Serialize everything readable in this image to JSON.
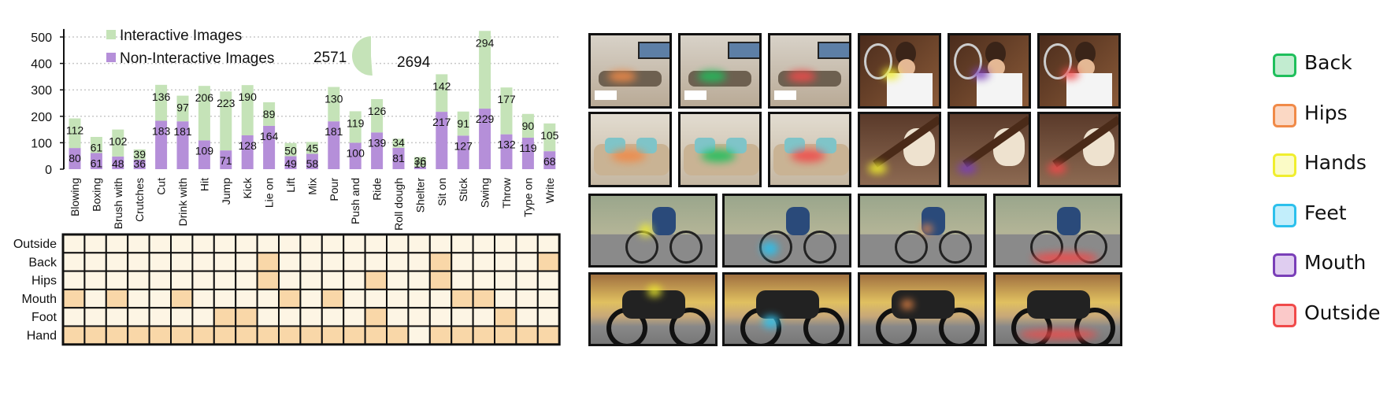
{
  "chart_data": [
    {
      "type": "bar",
      "stacked": true,
      "categories": [
        "Blowing",
        "Boxing",
        "Brush with",
        "Crutches",
        "Cut",
        "Drink with",
        "Hit",
        "Jump",
        "Kick",
        "Lie on",
        "Lift",
        "Mix",
        "Pour",
        "Push and",
        "Ride",
        "Roll dough",
        "Shelter",
        "Sit on",
        "Stick",
        "Swing",
        "Throw",
        "Type on",
        "Write"
      ],
      "series": [
        {
          "name": "Interactive Images",
          "color": "#c5e3b8",
          "values": [
            112,
            61,
            102,
            39,
            136,
            97,
            206,
            223,
            190,
            89,
            50,
            45,
            130,
            119,
            126,
            34,
            36,
            142,
            91,
            294,
            177,
            90,
            105
          ]
        },
        {
          "name": "Non-Interactive Images",
          "color": "#b58fd9",
          "values": [
            80,
            61,
            48,
            36,
            183,
            181,
            109,
            71,
            128,
            164,
            49,
            58,
            181,
            100,
            139,
            81,
            10,
            217,
            127,
            229,
            132,
            119,
            68
          ]
        }
      ],
      "yticks": [
        0,
        100,
        200,
        300,
        400,
        500
      ],
      "ylim": [
        0,
        530
      ],
      "grid": "horizontal dotted",
      "legend": "top-left"
    },
    {
      "type": "pie",
      "slices": [
        {
          "label": "2571",
          "value": 2571,
          "color": "#b58fd9"
        },
        {
          "label": "2694",
          "value": 2694,
          "color": "#c5e3b8"
        }
      ]
    },
    {
      "type": "heatmap",
      "rows": [
        "Outside",
        "Back",
        "Hips",
        "Mouth",
        "Foot",
        "Hand"
      ],
      "columns": [
        "Blowing",
        "Boxing",
        "Brush with",
        "Crutches",
        "Cut",
        "Drink with",
        "Hit",
        "Jump",
        "Kick",
        "Lie on",
        "Lift",
        "Mix",
        "Pour",
        "Push and",
        "Ride",
        "Roll dough",
        "Shelter",
        "Sit on",
        "Stick",
        "Swing",
        "Throw",
        "Type on",
        "Write"
      ],
      "values": [
        [
          0,
          0,
          0,
          0,
          0,
          0,
          0,
          0,
          0,
          0,
          0,
          0,
          0,
          0,
          0,
          0,
          0,
          0,
          0,
          0,
          0,
          0,
          0
        ],
        [
          0,
          0,
          0,
          0,
          0,
          0,
          0,
          0,
          0,
          1,
          0,
          0,
          0,
          0,
          0,
          0,
          0,
          1,
          0,
          0,
          0,
          0,
          1
        ],
        [
          0,
          0,
          0,
          0,
          0,
          0,
          0,
          0,
          0,
          1,
          0,
          0,
          0,
          0,
          1,
          0,
          0,
          1,
          0,
          0,
          0,
          0,
          0
        ],
        [
          1,
          0,
          1,
          0,
          0,
          1,
          0,
          0,
          0,
          0,
          1,
          0,
          1,
          0,
          0,
          0,
          0,
          0,
          1,
          1,
          0,
          0,
          0
        ],
        [
          0,
          0,
          0,
          0,
          0,
          0,
          0,
          1,
          1,
          0,
          0,
          0,
          0,
          0,
          1,
          0,
          0,
          0,
          0,
          0,
          1,
          0,
          0
        ],
        [
          1,
          1,
          1,
          1,
          1,
          1,
          1,
          1,
          1,
          1,
          1,
          1,
          1,
          1,
          1,
          1,
          0,
          1,
          1,
          1,
          1,
          1,
          1
        ]
      ],
      "colors": {
        "empty": "#fdf5e4",
        "filled": "#f9d7a8"
      }
    }
  ],
  "legend": {
    "items": [
      {
        "label": "Back",
        "color": "#1fbf5c",
        "fill": "#c2ecd0"
      },
      {
        "label": "Hips",
        "color": "#f08a48",
        "fill": "#fbd8c4"
      },
      {
        "label": "Hands",
        "color": "#f0ee2e",
        "fill": "#fbfbc6"
      },
      {
        "label": "Feet",
        "color": "#2cc0ec",
        "fill": "#c2eefb"
      },
      {
        "label": "Mouth",
        "color": "#7a3fb8",
        "fill": "#dfcdf0"
      },
      {
        "label": "Outside",
        "color": "#f04a4a",
        "fill": "#fbc9c9"
      }
    ]
  },
  "photos": {
    "row1": [
      {
        "scene": "sofa",
        "blob": "#f08a48"
      },
      {
        "scene": "sofa",
        "blob": "#1fbf5c"
      },
      {
        "scene": "sofa",
        "blob": "#f04a4a"
      },
      {
        "scene": "flute",
        "blob": "#f0ee2e"
      },
      {
        "scene": "flute",
        "blob": "#7a3fb8"
      },
      {
        "scene": "flute",
        "blob": "#f04a4a"
      }
    ],
    "row2": [
      {
        "scene": "couch",
        "blob": "#f08a48"
      },
      {
        "scene": "couch",
        "blob": "#1fbf5c"
      },
      {
        "scene": "couch",
        "blob": "#f04a4a"
      },
      {
        "scene": "pipe",
        "blob": "#f0ee2e"
      },
      {
        "scene": "pipe",
        "blob": "#7a3fb8"
      },
      {
        "scene": "pipe",
        "blob": "#f04a4a"
      }
    ],
    "row3": [
      {
        "scene": "bicycle",
        "blob": "#f0ee2e"
      },
      {
        "scene": "bicycle",
        "blob": "#2cc0ec"
      },
      {
        "scene": "bicycle",
        "blob": "#f08a48"
      },
      {
        "scene": "bicycle",
        "blob": "#f04a4a"
      }
    ],
    "row4": [
      {
        "scene": "motorcycle",
        "blob": "#f0ee2e"
      },
      {
        "scene": "motorcycle",
        "blob": "#2cc0ec"
      },
      {
        "scene": "motorcycle",
        "blob": "#f08a48"
      },
      {
        "scene": "motorcycle",
        "blob": "#f04a4a"
      }
    ]
  }
}
